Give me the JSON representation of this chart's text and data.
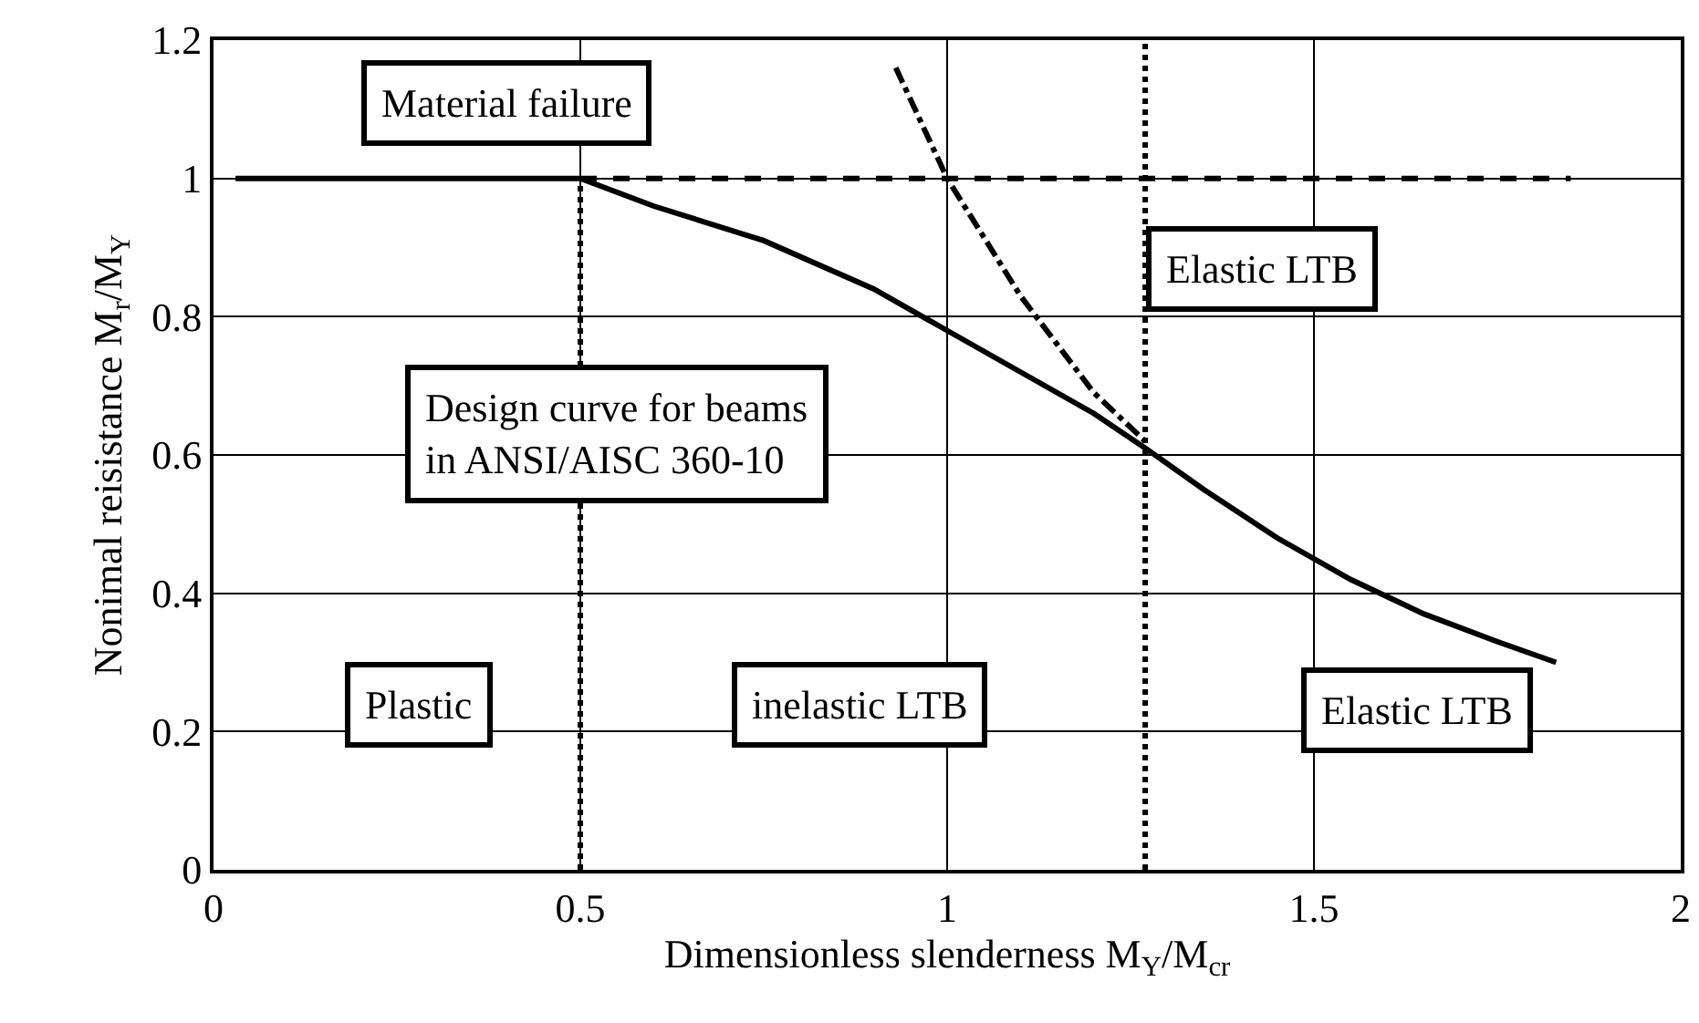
{
  "chart_data": {
    "type": "line",
    "xlabel": "Dimensionless slenderness M$_{Y}$/M$_{cr}$",
    "ylabel": "Nonimal reisistance M$_{r}$/M$_{Y}$",
    "xlim": [
      0,
      2
    ],
    "xticks": [
      0,
      0.5,
      1,
      1.5,
      2
    ],
    "ylim": [
      0,
      1.2
    ],
    "yticks": [
      0,
      0.2,
      0.4,
      0.6,
      0.8,
      1,
      1.2
    ],
    "grid": true,
    "marker": "none",
    "series": [
      {
        "color": "#000000",
        "line_style": "dashed",
        "x": [
          0.5,
          1.85
        ],
        "values": [
          1,
          1
        ]
      },
      {
        "color": "#000000",
        "line_style": "dashdot",
        "x": [
          0.93,
          1.0,
          1.1,
          1.2,
          1.27
        ],
        "values": [
          1.16,
          1.0,
          0.83,
          0.69,
          0.62
        ]
      },
      {
        "color": "#000000",
        "line_style": "dotted",
        "x": [
          0.5,
          0.5
        ],
        "values": [
          0,
          1
        ]
      },
      {
        "color": "#000000",
        "line_style": "solid",
        "x": [
          0.03,
          0.5,
          0.6,
          0.75,
          0.9,
          1.0,
          1.1,
          1.2,
          1.27,
          1.35,
          1.45,
          1.55,
          1.65,
          1.75,
          1.83
        ],
        "values": [
          1,
          1,
          0.96,
          0.91,
          0.84,
          0.78,
          0.72,
          0.66,
          0.61,
          0.55,
          0.48,
          0.42,
          0.37,
          0.33,
          0.3
        ]
      }
    ],
    "ref_lines": [
      {
        "axis": "x",
        "value": 1.27,
        "line_style": "dotted",
        "color": "#000000"
      }
    ],
    "annotations": [
      "Material failure",
      "Elastic LTB",
      "Design curve for beams\nin ANSI/AISC 360-10",
      "Plastic",
      "inelastic LTB",
      "Elastic LTB"
    ]
  }
}
